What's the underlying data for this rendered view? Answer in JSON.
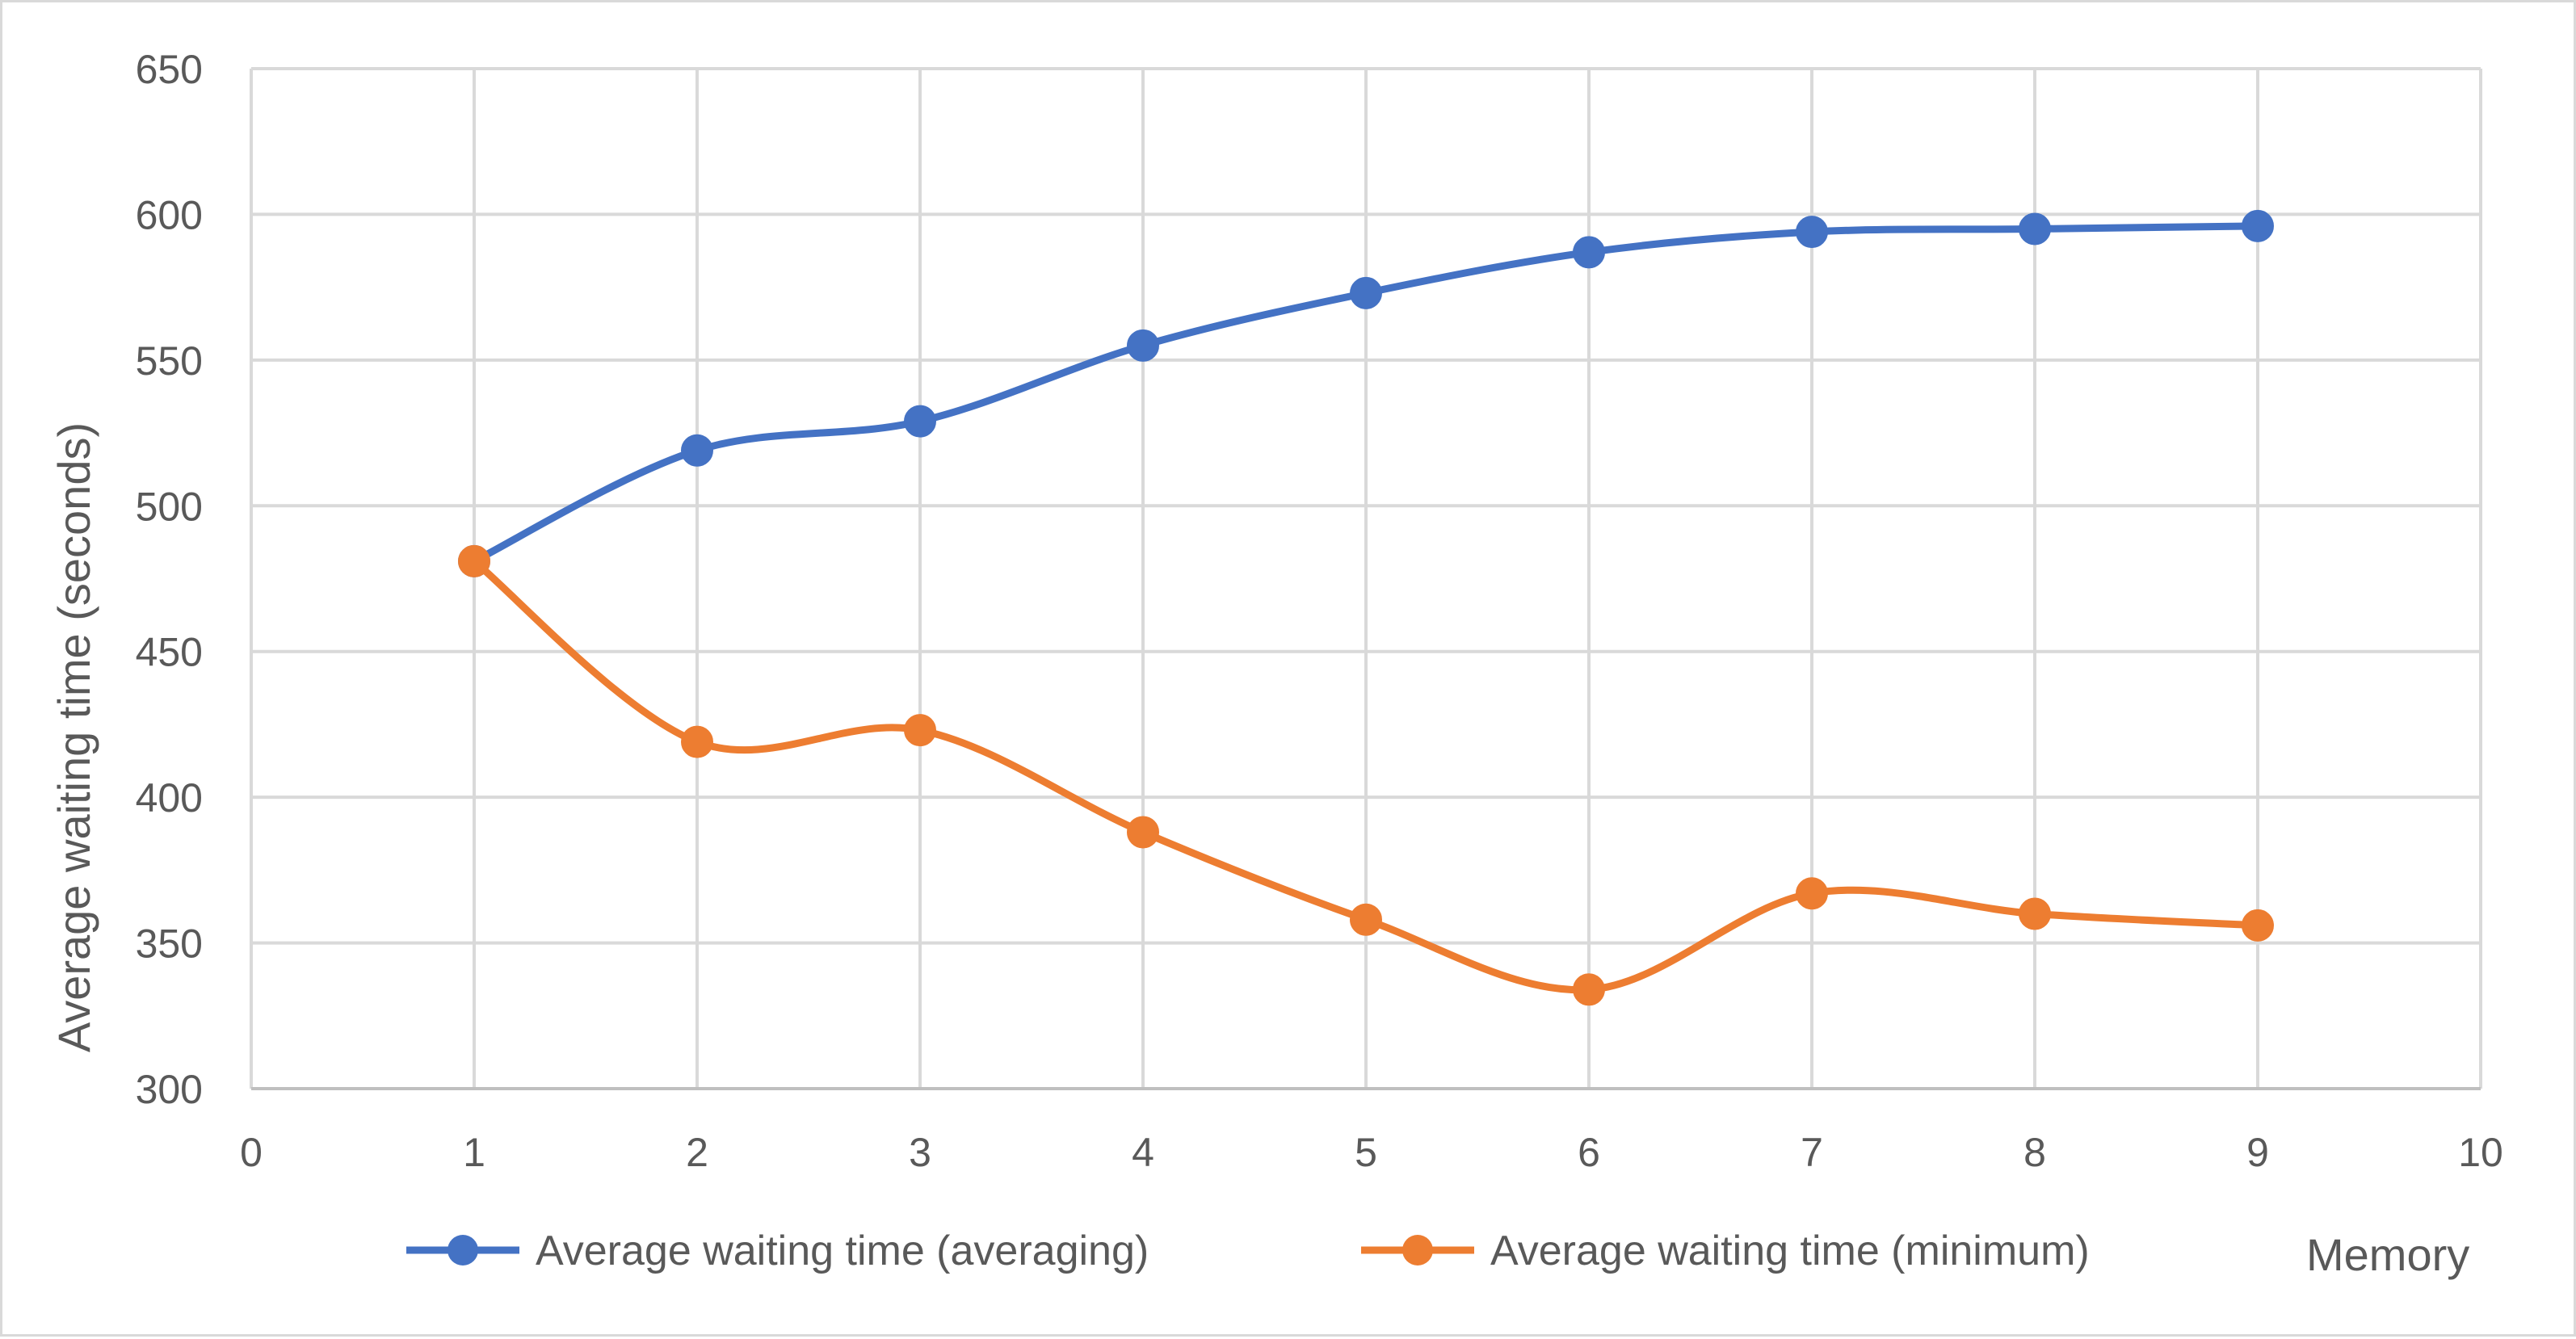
{
  "chart_data": {
    "type": "line",
    "title": "",
    "xlabel": "Memory",
    "ylabel": "Average waiting time (seconds)",
    "xlim": [
      0,
      10
    ],
    "ylim": [
      300,
      650
    ],
    "x_ticks": [
      "0",
      "1",
      "2",
      "3",
      "4",
      "5",
      "6",
      "7",
      "8",
      "9",
      "10"
    ],
    "y_ticks": [
      "300",
      "350",
      "400",
      "450",
      "500",
      "550",
      "600",
      "650"
    ],
    "grid": true,
    "smooth": true,
    "legend_position": "bottom",
    "x": [
      1,
      2,
      3,
      4,
      5,
      6,
      7,
      8,
      9
    ],
    "series": [
      {
        "name": "Average waiting time (averaging)",
        "color": "#4472c4",
        "values": [
          481,
          519,
          529,
          555,
          573,
          587,
          594,
          595,
          596
        ]
      },
      {
        "name": "Average waiting time (minimum)",
        "color": "#ed7d31",
        "values": [
          481,
          419,
          423,
          388,
          358,
          334,
          367,
          360,
          356
        ]
      }
    ]
  }
}
